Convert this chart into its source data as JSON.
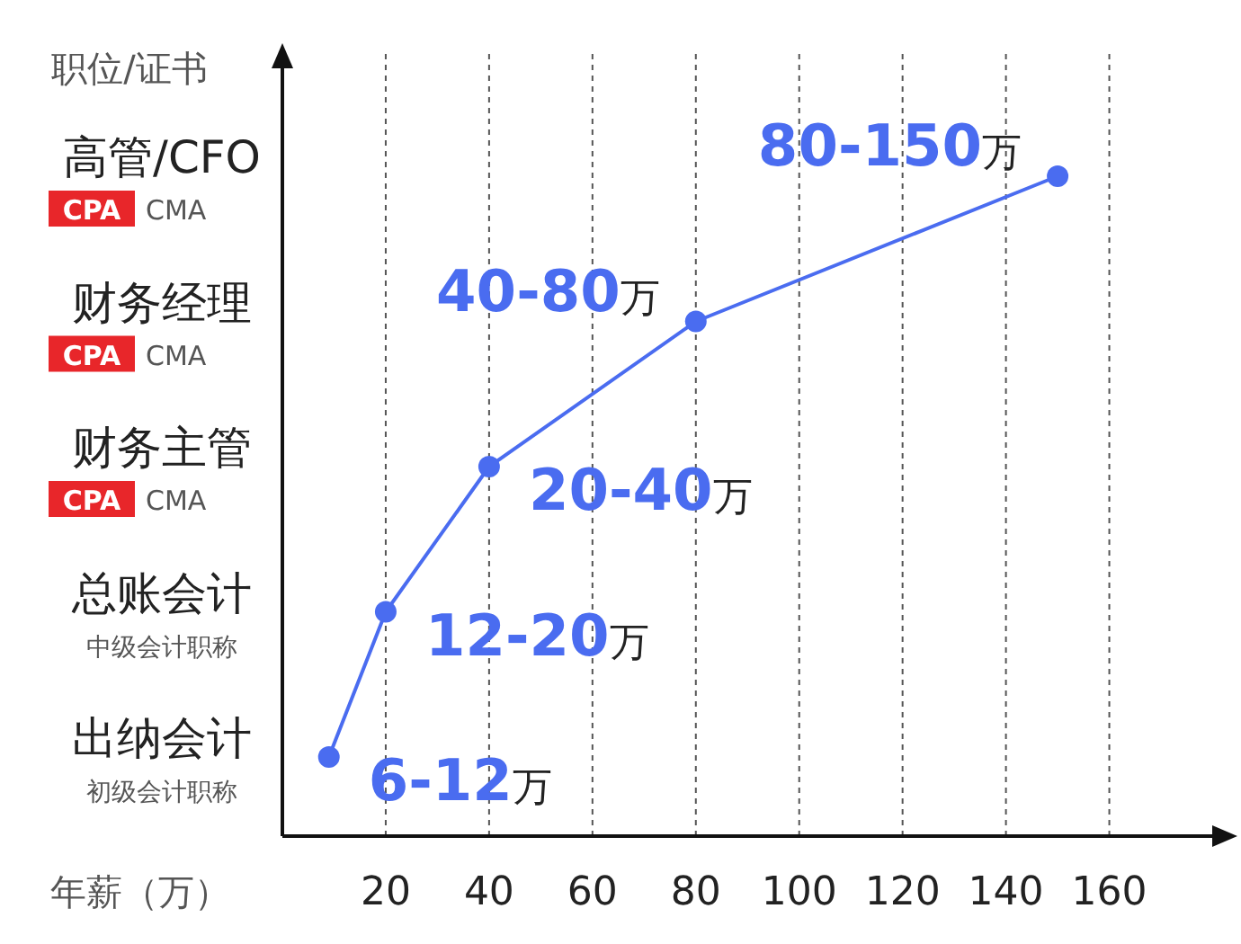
{
  "chart_data": {
    "type": "line",
    "orientation": "horizontal",
    "ylabel": "职位/证书",
    "xlabel": "年薪（万）",
    "categories": [
      "高管/CFO",
      "财务经理",
      "财务主管",
      "总账会计",
      "出纳会计"
    ],
    "annotations": [
      "CPA CMA",
      "CPA CMA",
      "CPA CMA",
      "中级会计职称",
      "初级会计职称"
    ],
    "values": [
      150,
      80,
      40,
      20,
      9
    ],
    "value_labels": [
      "80-150万",
      "40-80万",
      "20-40万",
      "12-20万",
      "6-12万"
    ],
    "color": "#4a6cf0",
    "marker": "circle",
    "line_style": "solid",
    "grid": "x",
    "xlim": [
      0,
      182
    ],
    "xticks": [
      20,
      40,
      60,
      80,
      100,
      120,
      140,
      160
    ]
  }
}
